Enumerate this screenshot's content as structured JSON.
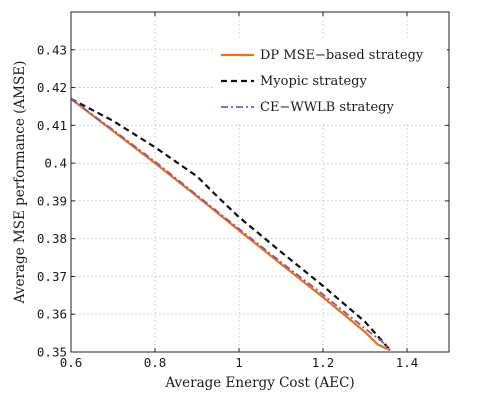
{
  "chart_data": {
    "type": "line",
    "title": "",
    "xlabel": "Average Energy Cost (AEC)",
    "ylabel": "Average MSE performance (AMSE)",
    "xlim": [
      0.6,
      1.5
    ],
    "ylim": [
      0.35,
      0.44
    ],
    "xticks": [
      0.6,
      0.8,
      1,
      1.2,
      1.4
    ],
    "xtick_labels": [
      "0.6",
      "0.8",
      "1",
      "1.2",
      "1.4"
    ],
    "yticks": [
      0.35,
      0.36,
      0.37,
      0.38,
      0.39,
      0.4,
      0.41,
      0.42,
      0.43
    ],
    "ytick_labels": [
      "0.35",
      "0.36",
      "0.37",
      "0.38",
      "0.39",
      "0.4",
      "0.41",
      "0.42",
      "0.43"
    ],
    "grid": true,
    "legend_position": "top-right",
    "series": [
      {
        "name": "DP MSE−based strategy",
        "color": "#e8721c",
        "style": "solid",
        "x": [
          0.6,
          0.7,
          0.8,
          0.9,
          1.0,
          1.1,
          1.2,
          1.3,
          1.33,
          1.36
        ],
        "y": [
          0.417,
          0.4085,
          0.4,
          0.3912,
          0.3822,
          0.3733,
          0.3645,
          0.3553,
          0.352,
          0.3505
        ]
      },
      {
        "name": "Myopic strategy",
        "color": "#111111",
        "style": "dashed",
        "x": [
          0.6,
          0.7,
          0.8,
          0.9,
          0.95,
          1.0,
          1.1,
          1.2,
          1.3,
          1.36
        ],
        "y": [
          0.417,
          0.4112,
          0.4042,
          0.3965,
          0.391,
          0.3857,
          0.3765,
          0.3675,
          0.358,
          0.3505
        ]
      },
      {
        "name": "CE−WWLB strategy",
        "color": "#7a5bb5",
        "style": "dashdot",
        "x": [
          0.6,
          0.7,
          0.8,
          0.9,
          1.0,
          1.1,
          1.2,
          1.3,
          1.34,
          1.36
        ],
        "y": [
          0.417,
          0.4088,
          0.4004,
          0.3915,
          0.3826,
          0.3738,
          0.3652,
          0.3562,
          0.3528,
          0.3505
        ]
      }
    ]
  }
}
